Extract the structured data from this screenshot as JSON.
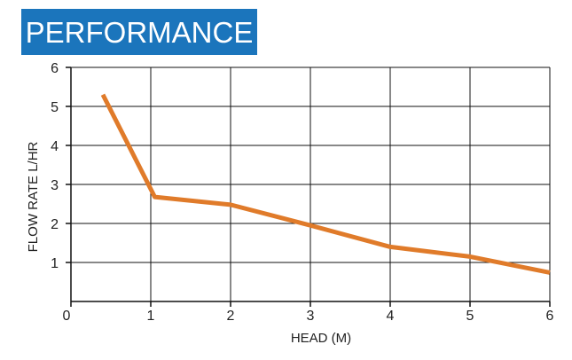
{
  "chart_data": {
    "type": "line",
    "title": "PERFORMANCE",
    "xlabel": "HEAD (M)",
    "ylabel": "FLOW RATE L/HR",
    "xlim": [
      0,
      6
    ],
    "ylim": [
      0,
      6
    ],
    "x_ticks": [
      0,
      1,
      2,
      3,
      4,
      5,
      6
    ],
    "y_ticks": [
      1,
      2,
      3,
      4,
      5,
      6
    ],
    "grid": true,
    "series": [
      {
        "color": "#e07b2a",
        "x": [
          0.4,
          1.05,
          2.0,
          3.0,
          4.0,
          5.0,
          6.0
        ],
        "y": [
          5.3,
          2.68,
          2.48,
          1.95,
          1.4,
          1.15,
          0.74
        ]
      }
    ]
  }
}
